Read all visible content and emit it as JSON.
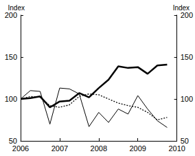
{
  "chart_data": {
    "type": "line",
    "y_label": "Index",
    "y2_label": "Index",
    "xlim": [
      2006,
      2010
    ],
    "xticks": [
      2006,
      2007,
      2008,
      2009,
      2010
    ],
    "ylim": [
      50,
      200
    ],
    "yticks": [
      50,
      100,
      150,
      200
    ],
    "y2lim": [
      50,
      200
    ],
    "y2ticks": [
      50,
      100,
      150,
      200
    ],
    "grid": false,
    "x": [
      2006,
      2006.25,
      2006.5,
      2006.75,
      2007,
      2007.25,
      2007.5,
      2007.75,
      2008,
      2008.25,
      2008.5,
      2008.75,
      2009,
      2009.25,
      2009.5,
      2009.75
    ],
    "series": [
      {
        "color": "#000000",
        "line_style": "thick",
        "values": [
          100,
          101,
          103,
          90,
          97,
          98,
          107,
          102,
          113,
          123,
          139,
          137,
          138,
          130,
          140,
          141
        ]
      },
      {
        "color": "#000000",
        "line_style": "solid",
        "values": [
          100,
          110,
          109,
          70,
          113,
          112,
          106,
          67,
          84,
          72,
          88,
          82,
          104,
          88,
          74,
          66
        ]
      },
      {
        "color": "#000000",
        "line_style": "dotted",
        "values": [
          100,
          103,
          102,
          92,
          90,
          93,
          103,
          106,
          105,
          100,
          95,
          92,
          90,
          84,
          75,
          78
        ]
      }
    ]
  }
}
